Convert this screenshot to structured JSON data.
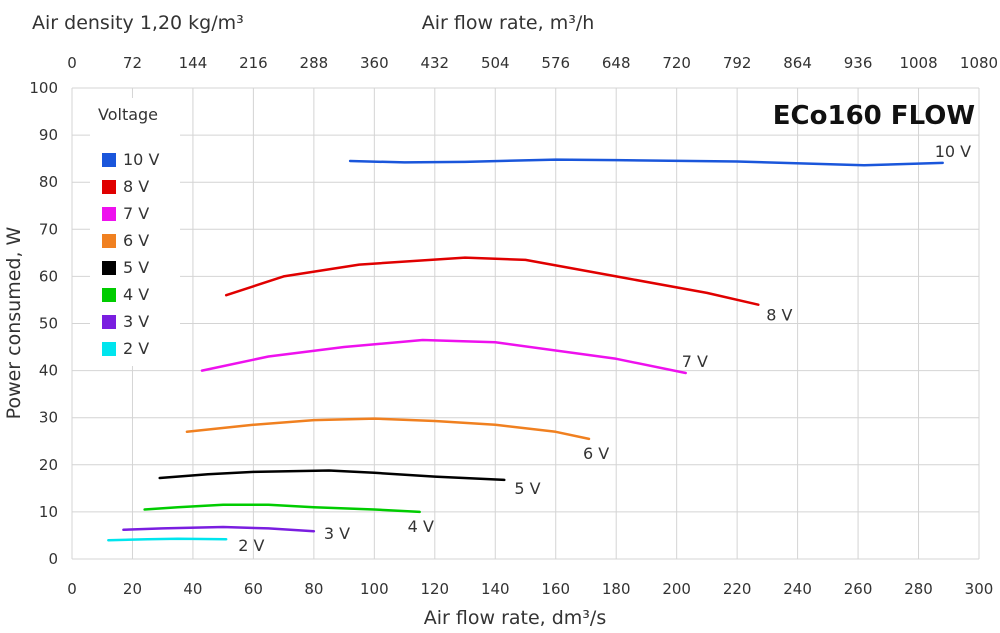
{
  "chart_data": {
    "type": "line",
    "title": "ECo160 FLOW",
    "density_label": "Air density 1,20 kg/m³",
    "x2label": "Air flow rate, m³/h",
    "xlabel": "Air flow rate, dm³/s",
    "ylabel": "Power consumed, W",
    "xlim": [
      0,
      300
    ],
    "ylim": [
      0,
      100
    ],
    "x2lim": [
      0,
      1080
    ],
    "xticks": [
      "0",
      "20",
      "40",
      "60",
      "80",
      "100",
      "120",
      "140",
      "160",
      "180",
      "200",
      "220",
      "240",
      "260",
      "280",
      "300"
    ],
    "yticks": [
      "0",
      "10",
      "20",
      "30",
      "40",
      "50",
      "60",
      "70",
      "80",
      "90",
      "100"
    ],
    "x2ticks": [
      "0",
      "72",
      "144",
      "216",
      "288",
      "360",
      "432",
      "504",
      "576",
      "648",
      "720",
      "792",
      "864",
      "936",
      "1008",
      "1080"
    ],
    "grid": true,
    "legend": {
      "title": "Voltage",
      "placement": "top-left"
    },
    "series": [
      {
        "name": "10 V",
        "color": "#1a56db",
        "x": [
          92,
          110,
          130,
          160,
          180,
          220,
          262,
          288
        ],
        "y": [
          84.5,
          84.2,
          84.3,
          84.8,
          84.7,
          84.4,
          83.6,
          84.1
        ]
      },
      {
        "name": "8 V",
        "color": "#e00000",
        "x": [
          51,
          70,
          95,
          130,
          150,
          180,
          210,
          227
        ],
        "y": [
          56,
          60,
          62.5,
          64,
          63.5,
          60,
          56.5,
          54
        ]
      },
      {
        "name": "7 V",
        "color": "#ee11ee",
        "x": [
          43,
          65,
          90,
          116,
          140,
          180,
          203
        ],
        "y": [
          40,
          43,
          45,
          46.5,
          46,
          42.5,
          39.5
        ]
      },
      {
        "name": "6 V",
        "color": "#f08020",
        "x": [
          38,
          60,
          80,
          100,
          120,
          140,
          160,
          171
        ],
        "y": [
          27,
          28.5,
          29.5,
          29.8,
          29.3,
          28.5,
          27,
          25.5
        ]
      },
      {
        "name": "5 V",
        "color": "#000000",
        "x": [
          29,
          45,
          60,
          85,
          100,
          120,
          143
        ],
        "y": [
          17.2,
          18,
          18.5,
          18.8,
          18.3,
          17.5,
          16.8
        ]
      },
      {
        "name": "4 V",
        "color": "#00cc00",
        "x": [
          24,
          35,
          50,
          65,
          80,
          100,
          115
        ],
        "y": [
          10.5,
          11,
          11.5,
          11.5,
          11,
          10.5,
          10
        ]
      },
      {
        "name": "3 V",
        "color": "#7a1ee0",
        "x": [
          17,
          30,
          50,
          65,
          80
        ],
        "y": [
          6.2,
          6.5,
          6.8,
          6.5,
          5.9
        ]
      },
      {
        "name": "2 V",
        "color": "#00e5ee",
        "x": [
          12,
          25,
          35,
          51
        ],
        "y": [
          4,
          4.2,
          4.3,
          4.2
        ]
      }
    ]
  }
}
